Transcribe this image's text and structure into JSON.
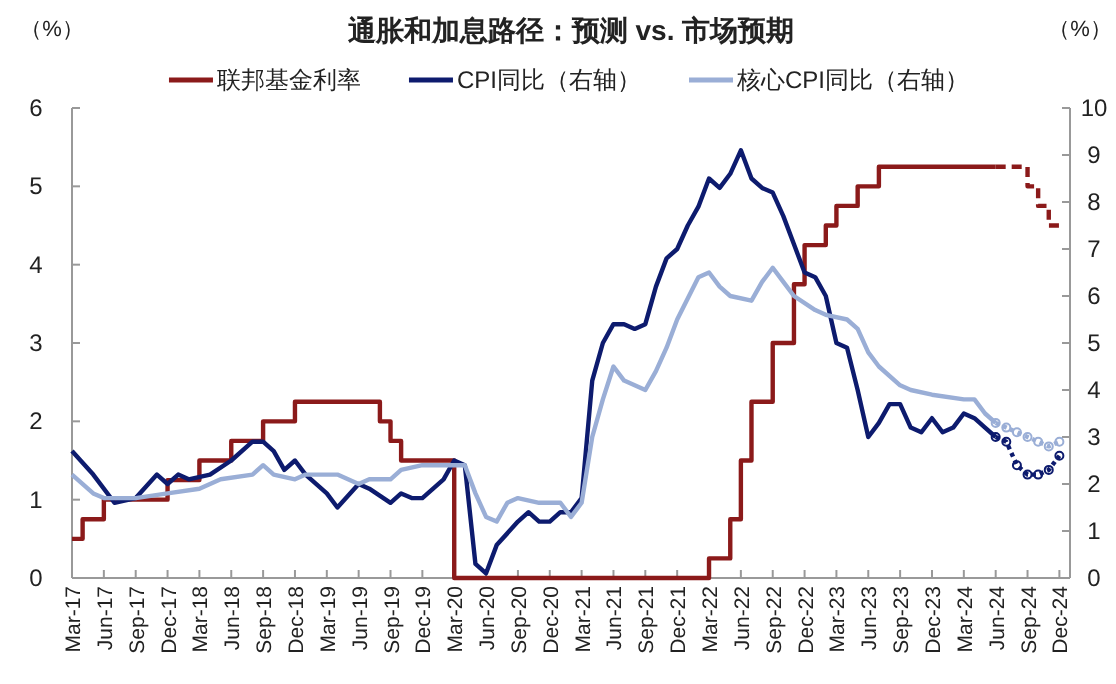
{
  "chart_data": {
    "type": "line",
    "title": "通胀和加息路径：预测 vs. 市场预期",
    "ylabel": "（%）",
    "y2label": "（%）",
    "xlim": [
      "2017-03",
      "2025-01"
    ],
    "ylim": [
      0,
      6
    ],
    "yticks": [
      0,
      1,
      2,
      3,
      4,
      5,
      6
    ],
    "y2lim": [
      0,
      10
    ],
    "y2ticks": [
      0,
      1,
      2,
      3,
      4,
      5,
      6,
      7,
      8,
      9,
      10
    ],
    "xticks": [
      {
        "value": "2017-03",
        "label": "Mar-17"
      },
      {
        "value": "2017-06",
        "label": "Jun-17"
      },
      {
        "value": "2017-09",
        "label": "Sep-17"
      },
      {
        "value": "2017-12",
        "label": "Dec-17"
      },
      {
        "value": "2018-03",
        "label": "Mar-18"
      },
      {
        "value": "2018-06",
        "label": "Jun-18"
      },
      {
        "value": "2018-09",
        "label": "Sep-18"
      },
      {
        "value": "2018-12",
        "label": "Dec-18"
      },
      {
        "value": "2019-03",
        "label": "Mar-19"
      },
      {
        "value": "2019-06",
        "label": "Jun-19"
      },
      {
        "value": "2019-09",
        "label": "Sep-19"
      },
      {
        "value": "2019-12",
        "label": "Dec-19"
      },
      {
        "value": "2020-03",
        "label": "Mar-20"
      },
      {
        "value": "2020-06",
        "label": "Jun-20"
      },
      {
        "value": "2020-09",
        "label": "Sep-20"
      },
      {
        "value": "2020-12",
        "label": "Dec-20"
      },
      {
        "value": "2021-03",
        "label": "Mar-21"
      },
      {
        "value": "2021-06",
        "label": "Jun-21"
      },
      {
        "value": "2021-09",
        "label": "Sep-21"
      },
      {
        "value": "2021-12",
        "label": "Dec-21"
      },
      {
        "value": "2022-03",
        "label": "Mar-22"
      },
      {
        "value": "2022-06",
        "label": "Jun-22"
      },
      {
        "value": "2022-09",
        "label": "Sep-22"
      },
      {
        "value": "2022-12",
        "label": "Dec-22"
      },
      {
        "value": "2023-03",
        "label": "Mar-23"
      },
      {
        "value": "2023-06",
        "label": "Jun-23"
      },
      {
        "value": "2023-09",
        "label": "Sep-23"
      },
      {
        "value": "2023-12",
        "label": "Dec-23"
      },
      {
        "value": "2024-03",
        "label": "Mar-24"
      },
      {
        "value": "2024-06",
        "label": "Jun-24"
      },
      {
        "value": "2024-09",
        "label": "Sep-24"
      },
      {
        "value": "2024-12",
        "label": "Dec-24"
      }
    ],
    "legend": "top",
    "grid": false,
    "series": [
      {
        "name": "联邦基金利率",
        "type": "step",
        "color": "#8b1a1a",
        "x": [
          "2017-03",
          "2017-04",
          "2017-06",
          "2017-12",
          "2018-03",
          "2018-06",
          "2018-09",
          "2018-12",
          "2019-08",
          "2019-09",
          "2019-10",
          "2020-03",
          "2022-03",
          "2022-05",
          "2022-06",
          "2022-07",
          "2022-09",
          "2022-11",
          "2022-12",
          "2023-02",
          "2023-03",
          "2023-05",
          "2023-07",
          "2024-06"
        ],
        "values": [
          0.5,
          0.75,
          1.0,
          1.25,
          1.5,
          1.75,
          2.0,
          2.25,
          2.0,
          1.75,
          1.5,
          0,
          0.25,
          0.75,
          1.5,
          2.25,
          3.0,
          3.75,
          4.25,
          4.5,
          4.75,
          5.0,
          5.25,
          5.25
        ]
      },
      {
        "type": "step",
        "color": "#8b1a1a",
        "line_style": "dashed",
        "x": [
          "2024-06",
          "2024-09",
          "2024-10",
          "2024-11",
          "2024-12"
        ],
        "values": [
          5.25,
          5.0,
          4.75,
          4.5,
          4.5
        ]
      },
      {
        "name": "CPI同比（右轴）",
        "axis": "y2",
        "color": "#0d1b6e",
        "x": [
          "2017-03",
          "2017-05",
          "2017-07",
          "2017-09",
          "2017-11",
          "2017-12",
          "2018-01",
          "2018-02",
          "2018-04",
          "2018-06",
          "2018-08",
          "2018-09",
          "2018-10",
          "2018-11",
          "2018-12",
          "2019-01",
          "2019-03",
          "2019-04",
          "2019-06",
          "2019-07",
          "2019-09",
          "2019-10",
          "2019-11",
          "2019-12",
          "2020-02",
          "2020-03",
          "2020-04",
          "2020-05",
          "2020-06",
          "2020-07",
          "2020-09",
          "2020-10",
          "2020-11",
          "2020-12",
          "2021-01",
          "2021-02",
          "2021-03",
          "2021-04",
          "2021-05",
          "2021-06",
          "2021-07",
          "2021-08",
          "2021-09",
          "2021-10",
          "2021-11",
          "2021-12",
          "2022-01",
          "2022-02",
          "2022-03",
          "2022-04",
          "2022-05",
          "2022-06",
          "2022-07",
          "2022-08",
          "2022-09",
          "2022-10",
          "2022-11",
          "2022-12",
          "2023-01",
          "2023-02",
          "2023-03",
          "2023-04",
          "2023-05",
          "2023-06",
          "2023-07",
          "2023-08",
          "2023-09",
          "2023-10",
          "2023-11",
          "2023-12",
          "2024-01",
          "2024-02",
          "2024-03",
          "2024-04",
          "2024-05",
          "2024-06"
        ],
        "values": [
          2.7,
          2.2,
          1.6,
          1.7,
          2.2,
          2.0,
          2.2,
          2.1,
          2.2,
          2.5,
          2.9,
          2.9,
          2.7,
          2.3,
          2.5,
          2.2,
          1.8,
          1.5,
          2.0,
          1.9,
          1.6,
          1.8,
          1.7,
          1.7,
          2.1,
          2.5,
          2.4,
          0.3,
          0.1,
          0.7,
          1.2,
          1.4,
          1.2,
          1.2,
          1.4,
          1.4,
          1.7,
          4.2,
          5.0,
          5.4,
          5.4,
          5.3,
          5.4,
          6.2,
          6.8,
          7.0,
          7.5,
          7.9,
          8.5,
          8.3,
          8.6,
          9.1,
          8.5,
          8.3,
          8.2,
          7.7,
          7.1,
          6.5,
          6.4,
          6.0,
          5.0,
          4.9,
          4.0,
          3.0,
          3.3,
          3.7,
          3.7,
          3.2,
          3.1,
          3.4,
          3.1,
          3.2,
          3.5,
          3.4,
          3.2,
          3.0
        ]
      },
      {
        "axis": "y2",
        "color": "#0d1b6e",
        "line_style": "dotted",
        "marker": "circle",
        "x": [
          "2024-06",
          "2024-07",
          "2024-08",
          "2024-09",
          "2024-10",
          "2024-11",
          "2024-12"
        ],
        "values": [
          3.0,
          2.9,
          2.4,
          2.2,
          2.2,
          2.3,
          2.6
        ]
      },
      {
        "name": "核心CPI同比（右轴）",
        "axis": "y2",
        "color": "#9aaed6",
        "x": [
          "2017-03",
          "2017-05",
          "2017-06",
          "2017-09",
          "2017-12",
          "2018-03",
          "2018-05",
          "2018-08",
          "2018-09",
          "2018-10",
          "2018-12",
          "2019-01",
          "2019-04",
          "2019-06",
          "2019-07",
          "2019-09",
          "2019-10",
          "2019-12",
          "2020-04",
          "2020-05",
          "2020-06",
          "2020-07",
          "2020-08",
          "2020-09",
          "2020-11",
          "2021-01",
          "2021-02",
          "2021-03",
          "2021-04",
          "2021-05",
          "2021-06",
          "2021-07",
          "2021-09",
          "2021-10",
          "2021-11",
          "2021-12",
          "2022-02",
          "2022-03",
          "2022-04",
          "2022-05",
          "2022-07",
          "2022-08",
          "2022-09",
          "2022-10",
          "2022-11",
          "2023-01",
          "2023-02",
          "2023-04",
          "2023-05",
          "2023-06",
          "2023-07",
          "2023-09",
          "2023-10",
          "2023-12",
          "2024-03",
          "2024-04",
          "2024-05",
          "2024-06"
        ],
        "values": [
          2.2,
          1.8,
          1.7,
          1.7,
          1.8,
          1.9,
          2.1,
          2.2,
          2.4,
          2.2,
          2.1,
          2.2,
          2.2,
          2.0,
          2.1,
          2.1,
          2.3,
          2.4,
          2.4,
          1.8,
          1.3,
          1.2,
          1.6,
          1.7,
          1.6,
          1.6,
          1.3,
          1.6,
          3.0,
          3.8,
          4.5,
          4.2,
          4.0,
          4.4,
          4.9,
          5.5,
          6.4,
          6.5,
          6.2,
          6.0,
          5.9,
          6.3,
          6.6,
          6.3,
          6.0,
          5.7,
          5.6,
          5.5,
          5.3,
          4.8,
          4.5,
          4.1,
          4.0,
          3.9,
          3.8,
          3.8,
          3.5,
          3.3
        ]
      },
      {
        "axis": "y2",
        "color": "#9aaed6",
        "line_style": "dotted",
        "marker": "circle",
        "x": [
          "2024-06",
          "2024-07",
          "2024-08",
          "2024-09",
          "2024-10",
          "2024-11",
          "2024-12"
        ],
        "values": [
          3.3,
          3.2,
          3.1,
          3.0,
          2.9,
          2.8,
          2.9
        ]
      }
    ]
  }
}
